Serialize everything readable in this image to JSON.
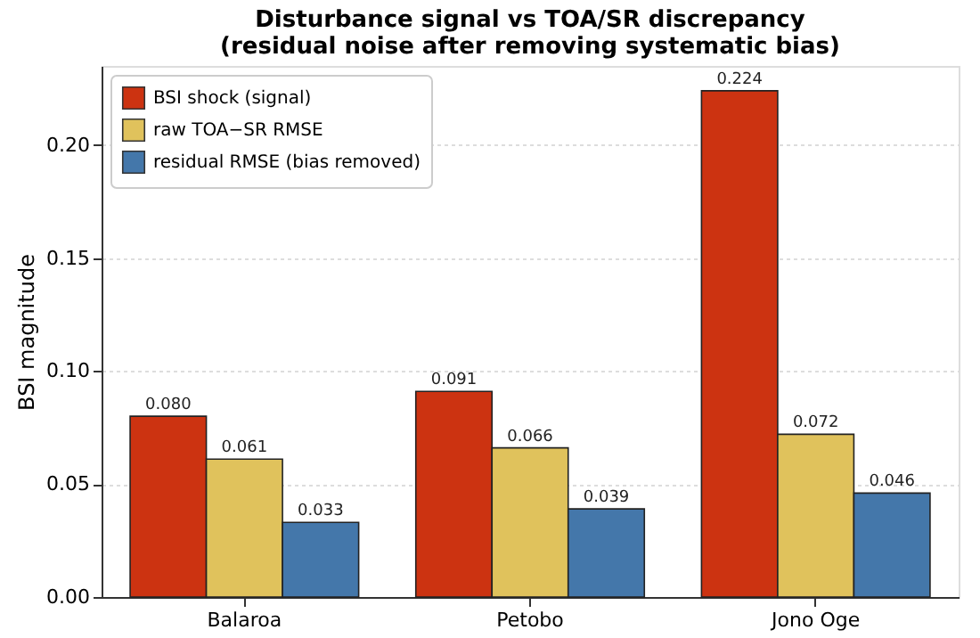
{
  "chart_data": {
    "type": "bar",
    "title": [
      "Disturbance signal vs TOA/SR discrepancy",
      "(residual noise after removing systematic bias)"
    ],
    "ylabel": "BSI magnitude",
    "categories": [
      "Balaroa",
      "Petobo",
      "Jono Oge"
    ],
    "series": [
      {
        "name": "BSI shock (signal)",
        "color": "#cc3311",
        "values": [
          0.08,
          0.091,
          0.224
        ],
        "value_labels": [
          "0.080",
          "0.091",
          "0.224"
        ]
      },
      {
        "name": "raw TOA−SR RMSE",
        "color": "#e0c25c",
        "values": [
          0.061,
          0.066,
          0.072
        ],
        "value_labels": [
          "0.061",
          "0.066",
          "0.072"
        ]
      },
      {
        "name": "residual RMSE (bias removed)",
        "color": "#4477aa",
        "values": [
          0.033,
          0.039,
          0.046
        ],
        "value_labels": [
          "0.033",
          "0.039",
          "0.046"
        ]
      }
    ],
    "ylim": [
      0,
      0.235
    ],
    "yticks": [
      {
        "value": 0,
        "label": "0.00"
      },
      {
        "value": 0.05,
        "label": "0.05"
      },
      {
        "value": 0.1,
        "label": "0.10"
      },
      {
        "value": 0.15,
        "label": "0.15"
      },
      {
        "value": 0.2,
        "label": "0.20"
      }
    ],
    "grid": "y",
    "legend": "top left"
  }
}
